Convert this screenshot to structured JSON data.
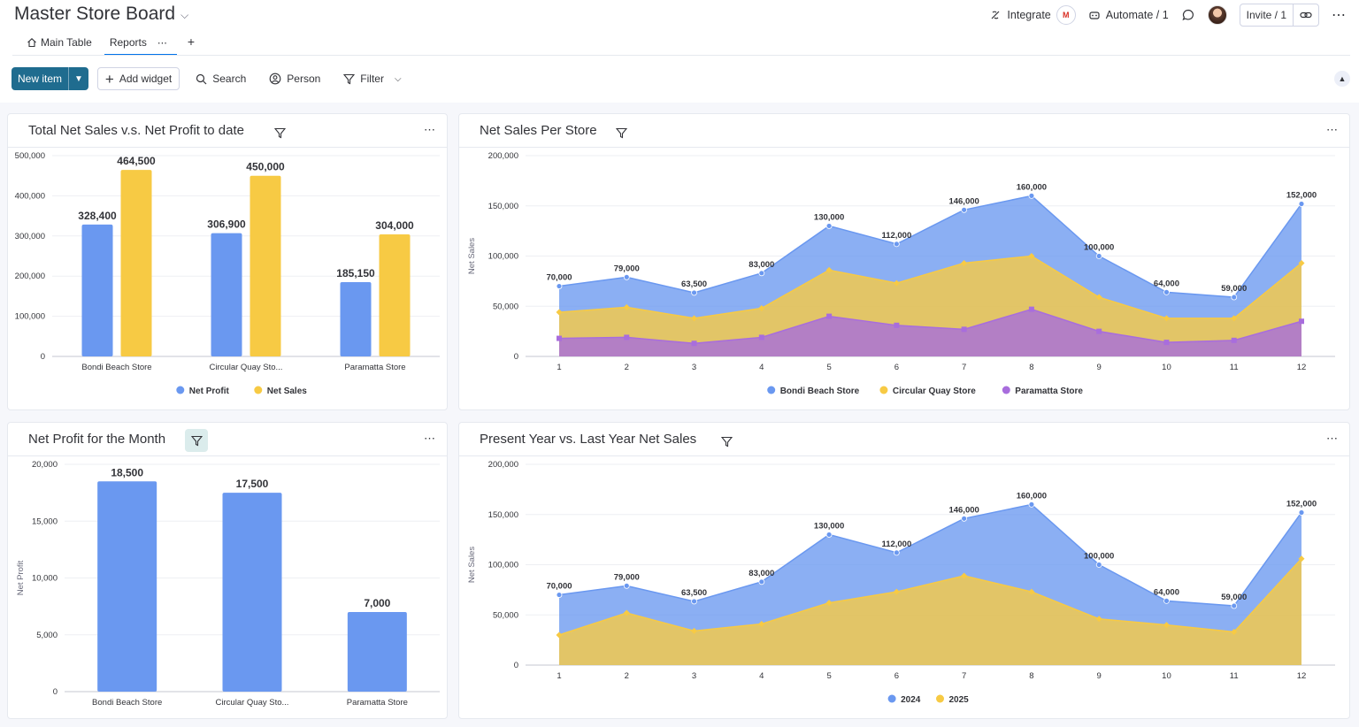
{
  "board": {
    "title": "Master Store Board"
  },
  "header": {
    "integrate_label": "Integrate",
    "automate_label": "Automate / 1",
    "invite_label": "Invite / 1"
  },
  "tabs": [
    {
      "label": "Main Table",
      "active": false
    },
    {
      "label": "Reports",
      "active": true
    }
  ],
  "toolbar": {
    "new_item_label": "New item",
    "add_widget_label": "Add widget",
    "search_label": "Search",
    "person_label": "Person",
    "filter_label": "Filter"
  },
  "colors": {
    "blue": "#6a98f0",
    "yellow": "#f7ca44",
    "purple": "#a86ddd",
    "brand": "#1f6c8f",
    "accent": "#0073ea"
  },
  "widgets": {
    "total": {
      "title": "Total Net Sales v.s. Net Profit to date"
    },
    "per_store": {
      "title": "Net Sales Per Store"
    },
    "profit_month": {
      "title": "Net Profit for the Month"
    },
    "yoy": {
      "title": "Present Year vs. Last Year Net Sales"
    }
  },
  "chart_data": [
    {
      "id": "total",
      "type": "bar",
      "title": "Total Net Sales v.s. Net Profit to date",
      "categories": [
        "Bondi Beach Store",
        "Circular Quay Sto...",
        "Paramatta Store"
      ],
      "series": [
        {
          "name": "Net Profit",
          "color": "#6a98f0",
          "values": [
            328400,
            306900,
            185150
          ],
          "labels": [
            "328,400",
            "306,900",
            "185,150"
          ]
        },
        {
          "name": "Net Sales",
          "color": "#f7ca44",
          "values": [
            464500,
            450000,
            304000
          ],
          "labels": [
            "464,500",
            "450,000",
            "304,000"
          ]
        }
      ],
      "ylim": [
        0,
        500000
      ],
      "yticks": [
        "0",
        "100,000",
        "200,000",
        "300,000",
        "400,000",
        "500,000"
      ],
      "ylabel": "",
      "legend": "bottom"
    },
    {
      "id": "per_store",
      "type": "area",
      "title": "Net Sales Per Store",
      "x": [
        "1",
        "2",
        "3",
        "4",
        "5",
        "6",
        "7",
        "8",
        "9",
        "10",
        "11",
        "12"
      ],
      "series": [
        {
          "name": "Bondi Beach Store",
          "color": "#6a98f0",
          "values": [
            70000,
            79000,
            63500,
            83000,
            130000,
            112000,
            146000,
            160000,
            100000,
            64000,
            59000,
            152000
          ],
          "labels": [
            "70,000",
            "79,000",
            "63,500",
            "83,000",
            "130,000",
            "112,000",
            "146,000",
            "160,000",
            "100,000",
            "64,000",
            "59,000",
            "152,000"
          ]
        },
        {
          "name": "Circular Quay Store",
          "color": "#f7ca44",
          "values": [
            44000,
            49000,
            38000,
            48000,
            86000,
            73000,
            93000,
            100000,
            59000,
            38000,
            38000,
            93000
          ]
        },
        {
          "name": "Paramatta Store",
          "color": "#a86ddd",
          "values": [
            18000,
            19000,
            13000,
            19000,
            40000,
            31000,
            27000,
            47000,
            25000,
            14000,
            16000,
            35000
          ]
        }
      ],
      "ylim": [
        0,
        200000
      ],
      "yticks": [
        "0",
        "50,000",
        "100,000",
        "150,000",
        "200,000"
      ],
      "ylabel": "Net Sales",
      "legend": "bottom"
    },
    {
      "id": "profit_month",
      "type": "bar",
      "title": "Net Profit for the Month",
      "categories": [
        "Bondi Beach Store",
        "Circular Quay Sto...",
        "Paramatta Store"
      ],
      "series": [
        {
          "name": "Net Profit",
          "color": "#6a98f0",
          "values": [
            18500,
            17500,
            7000
          ],
          "labels": [
            "18,500",
            "17,500",
            "7,000"
          ]
        }
      ],
      "ylim": [
        0,
        20000
      ],
      "yticks": [
        "0",
        "5,000",
        "10,000",
        "15,000",
        "20,000"
      ],
      "ylabel": "Net Profit",
      "legend": "none"
    },
    {
      "id": "yoy",
      "type": "area",
      "title": "Present Year vs. Last Year Net Sales",
      "x": [
        "1",
        "2",
        "3",
        "4",
        "5",
        "6",
        "7",
        "8",
        "9",
        "10",
        "11",
        "12"
      ],
      "series": [
        {
          "name": "2024",
          "color": "#6a98f0",
          "values": [
            70000,
            79000,
            63500,
            83000,
            130000,
            112000,
            146000,
            160000,
            100000,
            64000,
            59000,
            152000
          ],
          "labels": [
            "70,000",
            "79,000",
            "63,500",
            "83,000",
            "130,000",
            "112,000",
            "146,000",
            "160,000",
            "100,000",
            "64,000",
            "59,000",
            "152,000"
          ]
        },
        {
          "name": "2025",
          "color": "#f7ca44",
          "values": [
            30000,
            52000,
            34000,
            41000,
            62000,
            73000,
            89000,
            73000,
            46000,
            40000,
            33000,
            106000
          ]
        }
      ],
      "ylim": [
        0,
        200000
      ],
      "yticks": [
        "0",
        "50,000",
        "100,000",
        "150,000",
        "200,000"
      ],
      "ylabel": "Net Sales",
      "legend": "bottom"
    }
  ]
}
